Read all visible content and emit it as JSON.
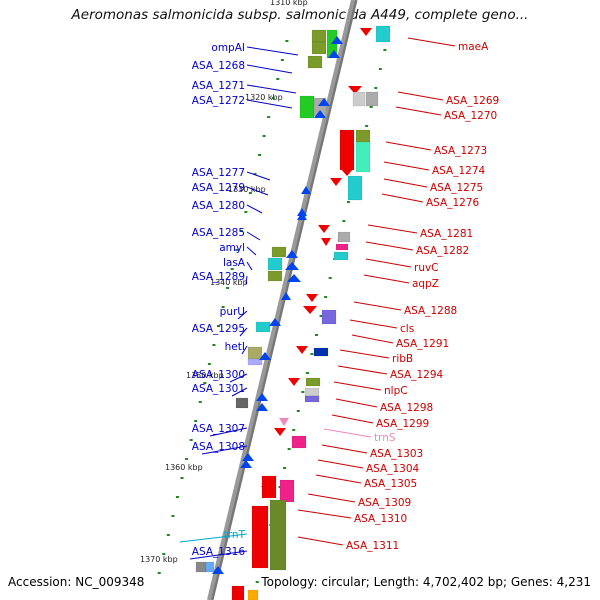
{
  "title": "Aeromonas salmonicida subsp. salmonicida A449, complete geno...",
  "footer": {
    "accession": "Accession: NC_009348",
    "stats": "Topology: circular; Length: 4,702,402 bp; Genes: 4,231"
  },
  "colors": {
    "forward_label": "#0000cc",
    "reverse_label": "#cc0000",
    "rna_label_left": "#00aacc",
    "rna_label_right": "#ee88bb",
    "backbone": "#999999",
    "tick": "#228822"
  },
  "kbp_marks": [
    "1310 kbp",
    "1320 kbp",
    "1330 kbp",
    "1340 kbp",
    "1350 kbp",
    "1360 kbp",
    "1370 kbp"
  ],
  "left_labels": [
    "ompAI",
    "ASA_1268",
    "ASA_1271",
    "ASA_1272",
    "ASA_1277",
    "ASA_1279",
    "ASA_1280",
    "ASA_1285",
    "amyl",
    "lasA",
    "ASA_1289",
    "purU",
    "ASA_1295",
    "hetI",
    "ASA_1300",
    "ASA_1301",
    "ASA_1307",
    "ASA_1308",
    "trnT",
    "ASA_1316"
  ],
  "right_labels": [
    "maeA",
    "ASA_1269",
    "ASA_1270",
    "ASA_1273",
    "ASA_1274",
    "ASA_1275",
    "ASA_1276",
    "ASA_1281",
    "ASA_1282",
    "ruvC",
    "aqpZ",
    "ASA_1288",
    "cls",
    "ASA_1291",
    "ribB",
    "ASA_1294",
    "nlpC",
    "ASA_1298",
    "ASA_1299",
    "trnS",
    "ASA_1303",
    "ASA_1304",
    "ASA_1305",
    "ASA_1309",
    "ASA_1310",
    "ASA_1311"
  ]
}
